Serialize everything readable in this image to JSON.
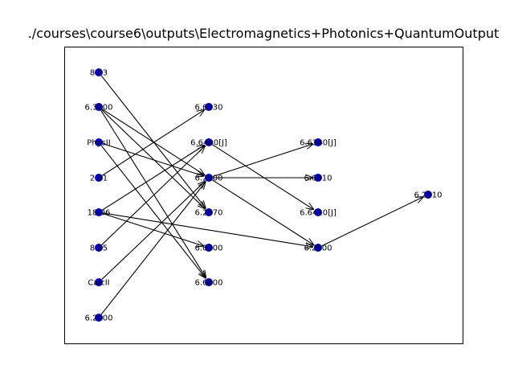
{
  "title": "./courses\\course6\\outputs\\Electromagnetics+Photonics+QuantumOutput",
  "node_color": "#0000cc",
  "edge_color": "#000000",
  "columns": [
    {
      "nodes": [
        {
          "id": "a1",
          "label": "8.03"
        },
        {
          "id": "a2",
          "label": "6.3000"
        },
        {
          "id": "a3",
          "label": "PhysII"
        },
        {
          "id": "a4",
          "label": "2.01"
        },
        {
          "id": "a5",
          "label": "18.06"
        },
        {
          "id": "a6",
          "label": "8.05"
        },
        {
          "id": "a7",
          "label": "CalcII"
        },
        {
          "id": "a8",
          "label": "6.2000"
        }
      ]
    },
    {
      "nodes": [
        {
          "id": "b1",
          "label": "6.6330"
        },
        {
          "id": "b2",
          "label": "6.6400[J]"
        },
        {
          "id": "b3",
          "label": "6.2300"
        },
        {
          "id": "b4",
          "label": "6.2370"
        },
        {
          "id": "b5",
          "label": "6.6300"
        },
        {
          "id": "b6",
          "label": "6.6600"
        }
      ]
    },
    {
      "nodes": [
        {
          "id": "c1",
          "label": "6.6340[J]"
        },
        {
          "id": "c2",
          "label": "6.6310"
        },
        {
          "id": "c3",
          "label": "6.6410[J]"
        },
        {
          "id": "c4",
          "label": "6.2500"
        }
      ]
    },
    {
      "nodes": [
        {
          "id": "d1",
          "label": "6.2210"
        }
      ]
    }
  ],
  "edges": [
    [
      "a1",
      "b4"
    ],
    [
      "a2",
      "b3"
    ],
    [
      "a2",
      "b4"
    ],
    [
      "a2",
      "b6"
    ],
    [
      "a3",
      "b3"
    ],
    [
      "a3",
      "b6"
    ],
    [
      "a4",
      "b1"
    ],
    [
      "a5",
      "b2"
    ],
    [
      "a5",
      "b5"
    ],
    [
      "a5",
      "c4"
    ],
    [
      "a6",
      "b2"
    ],
    [
      "a7",
      "b3"
    ],
    [
      "a8",
      "b3"
    ],
    [
      "b2",
      "c3"
    ],
    [
      "b3",
      "c1"
    ],
    [
      "b3",
      "c2"
    ],
    [
      "b3",
      "c4"
    ],
    [
      "c4",
      "d1"
    ]
  ]
}
